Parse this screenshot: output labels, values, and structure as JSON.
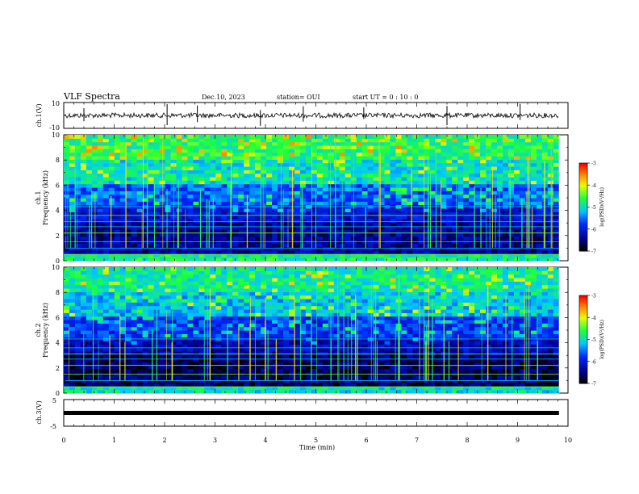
{
  "header": {
    "title": "VLF Spectra",
    "date": "Dec.10, 2023",
    "station": "station= OUI",
    "start": "start  UT =   0  : 10 : 0"
  },
  "colorbar": {
    "ticks": [
      "-3",
      "-4",
      "-5",
      "-6",
      "-7"
    ],
    "label": "log(PSD)(V²/Hz)"
  },
  "chart_data": {
    "type": "heatmap",
    "time_axis": {
      "label": "Time  (min)",
      "range": [
        0,
        10
      ],
      "ticks": [
        "0",
        "1",
        "2",
        "3",
        "4",
        "5",
        "6",
        "7",
        "8",
        "9",
        "10"
      ]
    },
    "panels": [
      {
        "id": "ch1_waveform",
        "ylabel": "ch.1(V)",
        "ylim": [
          -10,
          10
        ],
        "ticks": [
          "10",
          "-10"
        ],
        "kind": "waveform"
      },
      {
        "id": "ch1_spectrogram",
        "ylabel_top": "ch.1",
        "ylabel": "Frequency  (kHz)",
        "ylim": [
          0,
          10
        ],
        "ticks": [
          "0",
          "2",
          "4",
          "6",
          "8",
          "10"
        ],
        "color_range": [
          -7,
          -3
        ],
        "kind": "spectrogram"
      },
      {
        "id": "ch2_spectrogram",
        "ylabel_top": "ch.2",
        "ylabel": "Frequency  (kHz)",
        "ylim": [
          0,
          10
        ],
        "ticks": [
          "0",
          "2",
          "4",
          "6",
          "8",
          "10"
        ],
        "color_range": [
          -7,
          -3
        ],
        "kind": "spectrogram"
      },
      {
        "id": "ch3_waveform",
        "ylabel": "ch.3(V)",
        "ylim": [
          -5,
          5
        ],
        "ticks": [
          "5",
          "-5"
        ],
        "kind": "flat"
      }
    ],
    "data_end_min": 9.82,
    "colormap": [
      "#000000",
      "#00008b",
      "#0000ff",
      "#00bfff",
      "#00ff00",
      "#ffff00",
      "#ff8000",
      "#ff0000",
      "#ffffff"
    ]
  }
}
